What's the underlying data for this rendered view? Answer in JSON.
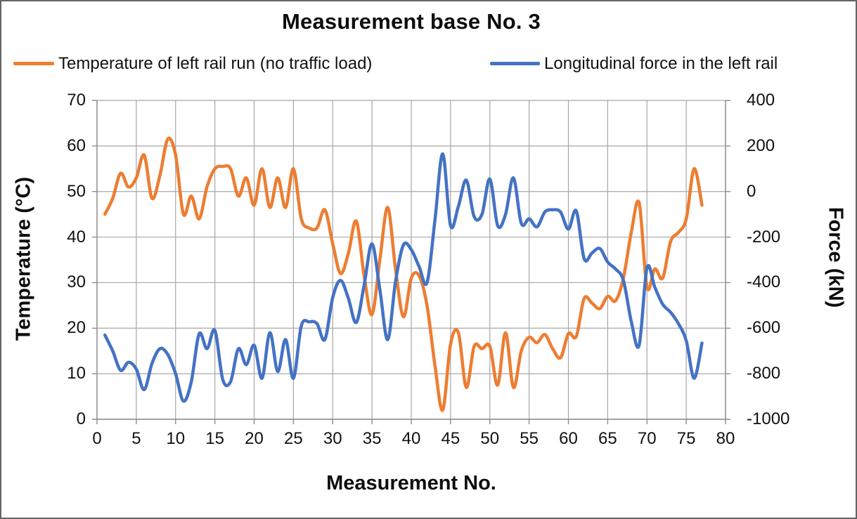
{
  "window": {
    "title": "Measurement base No. 3"
  },
  "colors": {
    "temperature_series": "#ED7D31",
    "force_series": "#4472C4",
    "gridline": "#A6A6A6",
    "axis_line": "#8C8C8C",
    "text": "#111111"
  },
  "chart_data": {
    "type": "line",
    "title": "Measurement base No. 3",
    "xlabel": "Measurement No.",
    "ylabel_left": "Temperature (°C)",
    "ylabel_right": "Force (kN)",
    "grid": true,
    "legend_position": "top",
    "x_range": [
      0,
      80
    ],
    "y_left_range": [
      0,
      70
    ],
    "y_right_range": [
      -1000,
      400
    ],
    "x_ticks": [
      "0",
      "5",
      "10",
      "15",
      "20",
      "25",
      "30",
      "35",
      "40",
      "45",
      "50",
      "55",
      "60",
      "65",
      "70",
      "75",
      "80"
    ],
    "y_left_ticks": [
      "70",
      "60",
      "50",
      "40",
      "30",
      "20",
      "10",
      "0"
    ],
    "y_right_ticks": [
      "400",
      "200",
      "0",
      "-200",
      "-400",
      "-600",
      "-800",
      "-1000"
    ],
    "x": [
      1,
      2,
      3,
      4,
      5,
      6,
      7,
      8,
      9,
      10,
      11,
      12,
      13,
      14,
      15,
      16,
      17,
      18,
      19,
      20,
      21,
      22,
      23,
      24,
      25,
      26,
      27,
      28,
      29,
      30,
      31,
      32,
      33,
      34,
      35,
      36,
      37,
      38,
      39,
      40,
      41,
      42,
      43,
      44,
      45,
      46,
      47,
      48,
      49,
      50,
      51,
      52,
      53,
      54,
      55,
      56,
      57,
      58,
      59,
      60,
      61,
      62,
      63,
      64,
      65,
      66,
      67,
      68,
      69,
      70,
      71,
      72,
      73,
      74,
      75,
      76,
      77
    ],
    "series": [
      {
        "name": "Temperature of left rail run (no traffic load)",
        "axis": "left",
        "color": "#ED7D31",
        "values": [
          45,
          48.5,
          54,
          51,
          53,
          58,
          48.5,
          53.5,
          61.5,
          58,
          45,
          49,
          44,
          51,
          55,
          55.5,
          55,
          49,
          53,
          47,
          55,
          46.5,
          53,
          46.5,
          55,
          44,
          42,
          42,
          46,
          38.5,
          32,
          36.5,
          43.5,
          31.5,
          23,
          35,
          46.5,
          33,
          22.5,
          31,
          31.5,
          25,
          12,
          2,
          16.5,
          19,
          7,
          16,
          15.5,
          16,
          7.5,
          19,
          7,
          15,
          18,
          16.8,
          18.6,
          15.5,
          13.5,
          18.8,
          18.2,
          26.5,
          25.5,
          24.3,
          27,
          26,
          31,
          41,
          47.5,
          29,
          33,
          31,
          39,
          41,
          44,
          55,
          47
        ]
      },
      {
        "name": "Longitudinal force in the left rail",
        "axis": "right",
        "color": "#4472C4",
        "values": [
          -630,
          -700,
          -785,
          -750,
          -780,
          -870,
          -755,
          -690,
          -715,
          -800,
          -920,
          -835,
          -625,
          -690,
          -610,
          -825,
          -835,
          -690,
          -760,
          -675,
          -820,
          -620,
          -790,
          -650,
          -820,
          -590,
          -572,
          -580,
          -650,
          -465,
          -390,
          -470,
          -575,
          -410,
          -230,
          -430,
          -650,
          -395,
          -235,
          -255,
          -330,
          -400,
          -130,
          165,
          -150,
          -65,
          50,
          -110,
          -100,
          55,
          -150,
          -100,
          60,
          -140,
          -120,
          -155,
          -90,
          -80,
          -90,
          -165,
          -85,
          -295,
          -270,
          -250,
          -310,
          -340,
          -390,
          -570,
          -675,
          -335,
          -420,
          -495,
          -530,
          -580,
          -655,
          -820,
          -665
        ]
      }
    ]
  }
}
